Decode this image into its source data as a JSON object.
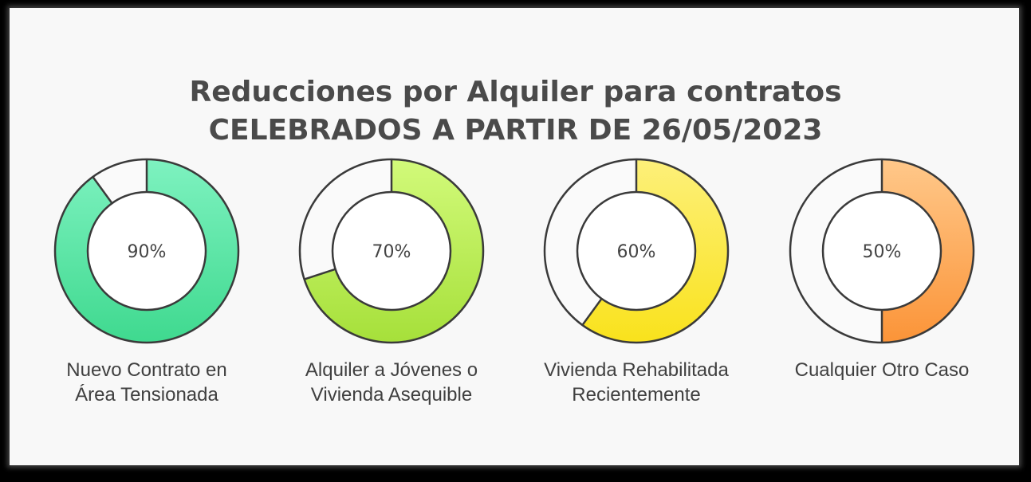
{
  "chart_data": {
    "type": "pie",
    "subtype": "donut",
    "title_lines": [
      "Reducciones por Alquiler para contratos",
      "CELEBRADOS A PARTIR DE 26/05/2023"
    ],
    "max": 100,
    "items": [
      {
        "label_lines": [
          "Nuevo Contrato en",
          "Área Tensionada"
        ],
        "value": 90,
        "display": "90%",
        "color_top": "#7ef2c0",
        "color_bottom": "#3fd98f"
      },
      {
        "label_lines": [
          "Alquiler a Jóvenes o",
          "Vivienda Asequible"
        ],
        "value": 70,
        "display": "70%",
        "color_top": "#d2fa7a",
        "color_bottom": "#a6e03a"
      },
      {
        "label_lines": [
          "Vivienda Rehabilitada",
          "Recientemente"
        ],
        "value": 60,
        "display": "60%",
        "color_top": "#fdf07a",
        "color_bottom": "#f9e21c"
      },
      {
        "label_lines": [
          "Cualquier Otro Caso"
        ],
        "value": 50,
        "display": "50%",
        "color_top": "#ffc88a",
        "color_bottom": "#fb9438"
      }
    ],
    "remainder_color": "#fafafa",
    "outline_color": "#3a3a3a"
  }
}
